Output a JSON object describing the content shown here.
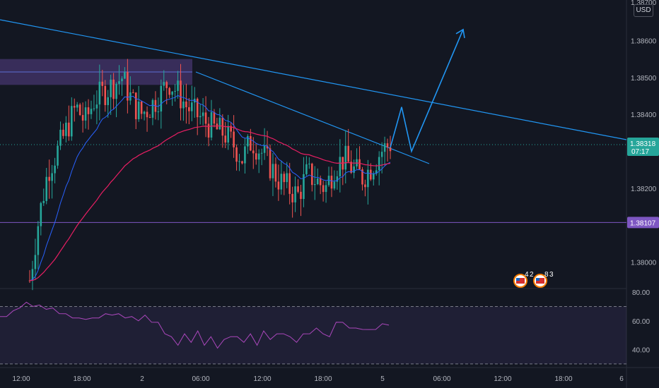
{
  "currency_label": "USD",
  "chart_data": [
    {
      "type": "candlestick",
      "title": "",
      "price_axis": {
        "ticks": [
          "1.38600",
          "1.38500",
          "1.38400",
          "1.38200",
          "1.38000"
        ],
        "top_label_partial": "1.38700",
        "range": [
          1.3793,
          1.3871
        ]
      },
      "time_axis": {
        "ticks": [
          "12:00",
          "18:00",
          "2",
          "06:00",
          "12:00",
          "18:00",
          "5",
          "06:00",
          "12:00",
          "18:00",
          "6"
        ]
      },
      "current_price": {
        "value": "1.38318",
        "countdown": "07:17",
        "color": "#26a69a"
      },
      "horizontal_level": {
        "value": "1.38107",
        "color": "#7e57c2"
      },
      "supply_zone": {
        "price_top": 1.3855,
        "price_bottom": 1.3848,
        "mid_line": 1.38515,
        "color": "#7e57c2"
      },
      "close_series": [
        1.3795,
        1.3812,
        1.3825,
        1.383,
        1.3836,
        1.3842,
        1.3838,
        1.3844,
        1.3846,
        1.3848,
        1.385,
        1.3844,
        1.384,
        1.3842,
        1.3845,
        1.3849,
        1.3846,
        1.3842,
        1.384,
        1.3838,
        1.3836,
        1.3835,
        1.3832,
        1.3828,
        1.3833,
        1.383,
        1.3826,
        1.3822,
        1.382,
        1.3818,
        1.3824,
        1.3822,
        1.382,
        1.3826,
        1.3828,
        1.3825,
        1.3823,
        1.3826,
        1.383,
        1.3832
      ],
      "ema_fast_label": "",
      "ema_slow_label": "",
      "projection_points": [
        [
          1.3831,
          0
        ],
        [
          1.3842,
          1
        ],
        [
          1.383,
          2
        ],
        [
          1.3863,
          3
        ]
      ],
      "event_badges": [
        {
          "label": "4",
          "sub": "2"
        },
        {
          "label": "8",
          "sub": "3"
        }
      ]
    },
    {
      "type": "line",
      "title": "",
      "indicator": "",
      "y_ticks": [
        "80.00",
        "60.00",
        "40.00"
      ],
      "ylim": [
        28,
        82
      ],
      "band": [
        30,
        70
      ],
      "values": [
        62,
        64,
        66,
        70,
        72,
        71,
        70,
        69,
        68,
        66,
        64,
        63,
        61,
        62,
        61,
        63,
        64,
        65,
        64,
        63,
        62,
        61,
        63,
        60,
        58,
        52,
        48,
        44,
        50,
        46,
        52,
        44,
        48,
        42,
        46,
        50,
        48,
        46,
        50,
        44,
        52,
        48,
        50,
        52,
        48,
        46,
        50,
        52,
        54,
        52,
        48,
        60,
        58,
        56,
        54,
        55,
        53,
        55,
        57,
        58
      ]
    },
    {
      "type": "annotation",
      "trend_lines": [
        {
          "name": "upper-trendline",
          "color": "#2196f3"
        },
        {
          "name": "lower-trendline",
          "color": "#2196f3"
        }
      ]
    }
  ]
}
